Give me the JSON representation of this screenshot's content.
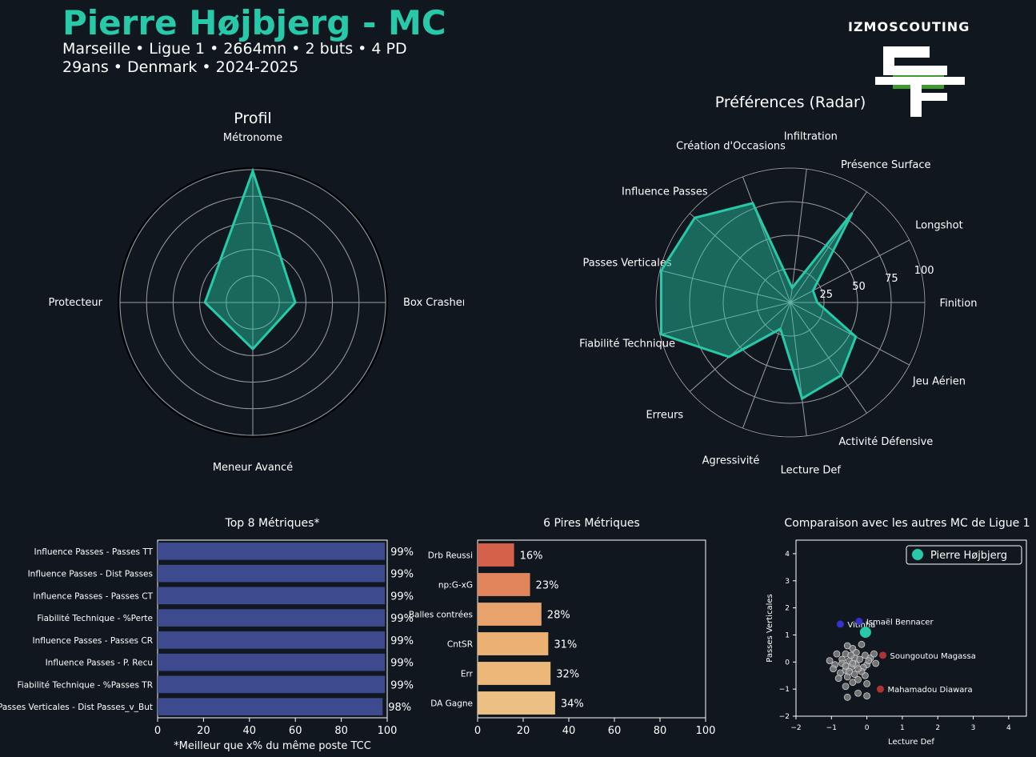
{
  "header": {
    "title": "Pierre Højbjerg - MC",
    "line1": "Marseille • Ligue 1 • 2664mn • 2 buts • 4 PD",
    "line2": "29ans • Denmark • 2024-2025",
    "logo_text": "IZMOSCOUTING"
  },
  "colors": {
    "accent": "#27c9a9",
    "background": "#10171e",
    "bar_top": "#3e4a8e"
  },
  "chart_data": [
    {
      "type": "radar",
      "title": "Profil",
      "axes": [
        "Métronome",
        "Box Crasher",
        "Meneur Avancé",
        "Protecteur"
      ],
      "values": [
        99,
        32,
        35,
        36
      ],
      "rlim": [
        0,
        100
      ]
    },
    {
      "type": "radar",
      "title": "Préférences (Radar)",
      "axes": [
        "Finition",
        "Longshot",
        "Présence Surface",
        "Infiltration",
        "Création d'Occasions",
        "Influence Passes",
        "Passes Verticales",
        "Fiabilité Technique",
        "Erreurs",
        "Agressivité",
        "Lecture Def",
        "Activité Défensive",
        "Jeu Aérien"
      ],
      "values": [
        20,
        19,
        81,
        11,
        79,
        95,
        99,
        99,
        61,
        21,
        72,
        66,
        55
      ],
      "rticks": [
        25,
        50,
        75,
        100
      ],
      "rlim": [
        0,
        100
      ]
    },
    {
      "type": "bar",
      "orientation": "horizontal",
      "title": "Top 8 Métriques*",
      "categories": [
        "Influence Passes - Passes TT",
        "Influence Passes - Dist Passes",
        "Influence Passes - Passes CT",
        "Fiabilité Technique - %Perte",
        "Influence Passes - Passes CR",
        "Influence Passes - P. Recu",
        "Fiabilité Technique - %Passes TR",
        "Passes Verticales - Dist Passes_v_But"
      ],
      "values": [
        99,
        99,
        99,
        99,
        99,
        99,
        99,
        98
      ],
      "value_labels": [
        "99%",
        "99%",
        "99%",
        "99%",
        "99%",
        "99%",
        "99%",
        "98%"
      ],
      "xlim": [
        0,
        100
      ],
      "xticks": [
        "0",
        "20",
        "40",
        "60",
        "80",
        "100"
      ],
      "xlabel": "*Meilleur que x% du même poste TCC"
    },
    {
      "type": "bar",
      "orientation": "horizontal",
      "title": "6 Pires Métriques",
      "categories": [
        "Drb Reussi",
        "np:G-xG",
        "Balles contrées",
        "CntSR",
        "Err",
        "DA Gagne"
      ],
      "values": [
        16,
        23,
        28,
        31,
        32,
        34
      ],
      "value_labels": [
        "16%",
        "23%",
        "28%",
        "31%",
        "32%",
        "34%"
      ],
      "colors": [
        "#d5614b",
        "#e0855c",
        "#e8a36c",
        "#ebb172",
        "#ecb879",
        "#ecbf84"
      ],
      "xlim": [
        0,
        100
      ],
      "xticks": [
        "0",
        "20",
        "40",
        "60",
        "80",
        "100"
      ]
    },
    {
      "type": "scatter",
      "title": "Comparaison avec les autres MC de Ligue 1",
      "xlabel": "Lecture Def",
      "ylabel": "Passes Verticales",
      "xlim": [
        -2,
        4.5
      ],
      "ylim": [
        -2,
        4.5
      ],
      "xticks": [
        "−2",
        "−1",
        "0",
        "1",
        "2",
        "3",
        "4"
      ],
      "yticks": [
        "−2",
        "−1",
        "0",
        "1",
        "2",
        "3",
        "4"
      ],
      "legend": "Pierre Højbjerg",
      "highlight": {
        "name": "Pierre Højbjerg",
        "x": -0.04,
        "y": 1.1
      },
      "labeled": [
        {
          "name": "Vitinha",
          "x": -0.75,
          "y": 1.4,
          "color": "#3333cc"
        },
        {
          "name": "Ismaël Bennacer",
          "x": -0.22,
          "y": 1.5,
          "color": "#3333cc"
        },
        {
          "name": "Soungoutou Magassa",
          "x": 0.45,
          "y": 0.25,
          "color": "#b03333"
        },
        {
          "name": "Mahamadou Diawara",
          "x": 0.38,
          "y": -1.0,
          "color": "#b03333"
        }
      ],
      "others": [
        [
          -0.55,
          0.6
        ],
        [
          -0.4,
          0.5
        ],
        [
          -0.3,
          0.35
        ],
        [
          -0.15,
          0.65
        ],
        [
          -0.6,
          0.3
        ],
        [
          -0.85,
          0.3
        ],
        [
          -0.7,
          0.1
        ],
        [
          -0.5,
          0.05
        ],
        [
          -0.35,
          0.15
        ],
        [
          -0.2,
          0.1
        ],
        [
          -0.05,
          0.25
        ],
        [
          0.1,
          0.15
        ],
        [
          0.2,
          0.3
        ],
        [
          0.25,
          -0.05
        ],
        [
          0.0,
          -0.1
        ],
        [
          -0.1,
          -0.2
        ],
        [
          -0.3,
          -0.1
        ],
        [
          -0.45,
          -0.2
        ],
        [
          -0.6,
          -0.3
        ],
        [
          -0.75,
          -0.4
        ],
        [
          -0.9,
          -0.1
        ],
        [
          -1.05,
          0.05
        ],
        [
          -0.95,
          -0.25
        ],
        [
          -0.55,
          -0.55
        ],
        [
          -0.4,
          -0.75
        ],
        [
          -0.25,
          -0.65
        ],
        [
          -0.05,
          -0.5
        ],
        [
          0.0,
          -0.8
        ],
        [
          -0.6,
          -0.9
        ],
        [
          -0.55,
          -1.3
        ],
        [
          -0.25,
          -1.15
        ],
        [
          0.0,
          -1.25
        ],
        [
          -0.15,
          -0.35
        ],
        [
          -0.35,
          -0.45
        ],
        [
          -0.7,
          -0.05
        ],
        [
          -0.5,
          -0.35
        ],
        [
          -0.8,
          -0.6
        ],
        [
          -0.45,
          0.25
        ],
        [
          -0.25,
          -0.25
        ],
        [
          0.05,
          0.05
        ],
        [
          -0.6,
          -0.15
        ],
        [
          -0.4,
          -0.05
        ]
      ]
    }
  ]
}
